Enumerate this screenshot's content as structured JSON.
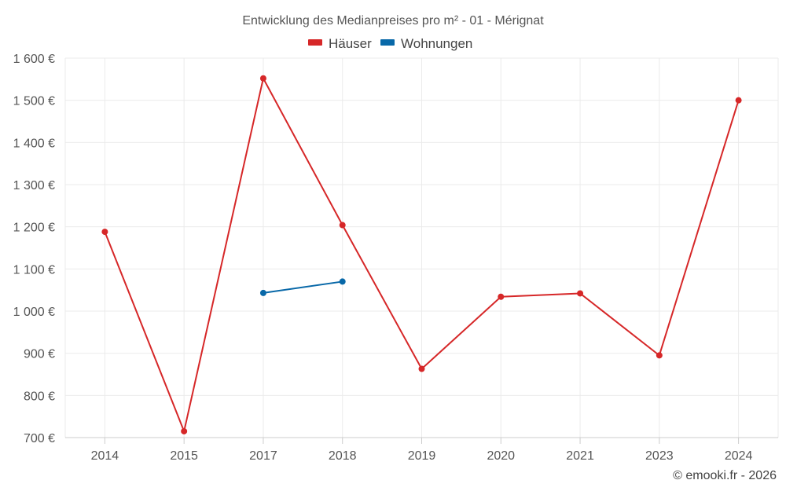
{
  "chart_data": {
    "type": "line",
    "title": "Entwicklung des Medianpreises pro m² - 01 - Mérignat",
    "categories": [
      "2014",
      "2015",
      "2017",
      "2018",
      "2019",
      "2020",
      "2021",
      "2023",
      "2024"
    ],
    "series": [
      {
        "name": "Häuser",
        "color": "#d62728",
        "values": [
          1188,
          715,
          1552,
          1204,
          863,
          1034,
          1042,
          895,
          1500
        ]
      },
      {
        "name": "Wohnungen",
        "color": "#0868a8",
        "values": [
          null,
          null,
          1043,
          1070,
          null,
          null,
          null,
          null,
          null
        ]
      }
    ],
    "ylim": [
      700,
      1600
    ],
    "yticks": [
      700,
      800,
      900,
      1000,
      1100,
      1200,
      1300,
      1400,
      1500,
      1600
    ],
    "ytick_labels": [
      "700 €",
      "800 €",
      "900 €",
      "1 000 €",
      "1 100 €",
      "1 200 €",
      "1 300 €",
      "1 400 €",
      "1 500 €",
      "1 600 €"
    ],
    "grid": true,
    "legend_position": "top-center",
    "xlabel": "",
    "ylabel": ""
  },
  "credit": "© emooki.fr - 2026"
}
